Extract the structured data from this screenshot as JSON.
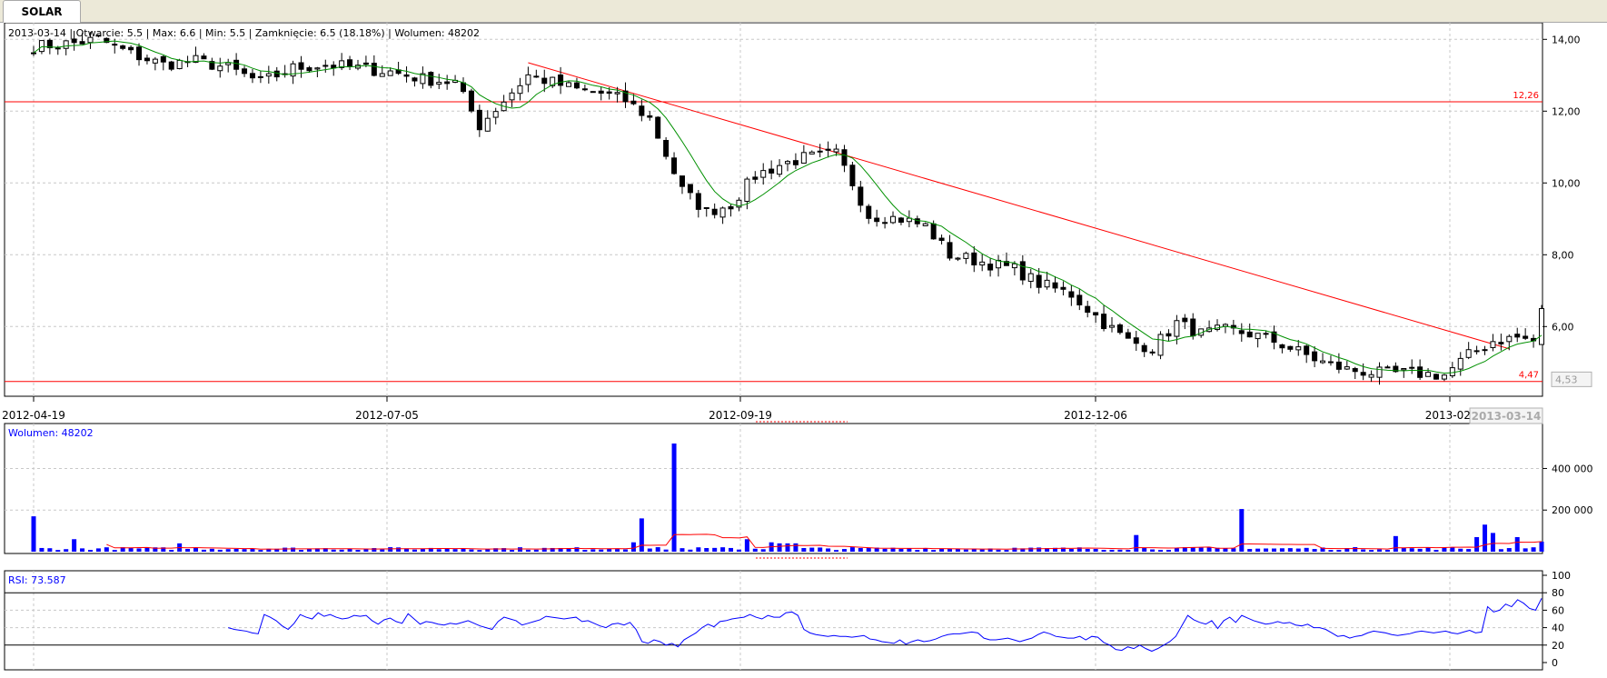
{
  "tab": {
    "label": "SOLAR"
  },
  "chart_data": [
    {
      "type": "candlestick",
      "header": "2013-03-14 | Otwarcie: 5.5 | Max: 6.6 | Min: 5.5 | Zamknięcie: 6.5 (18.18%) | Wolumen: 48202",
      "x_tick_labels": [
        "2012-04-19",
        "2012-07-05",
        "2012-09-19",
        "2012-12-06",
        "2013-02-"
      ],
      "current_date_label": "2013-03-14",
      "y_tick_labels": [
        "14,00",
        "12,00",
        "10,00",
        "8,00",
        "6,00"
      ],
      "ylim": [
        4.4,
        14.4
      ],
      "horizontal_lines": [
        {
          "value": 12.26,
          "label": "12,26",
          "color": "#ff0000"
        },
        {
          "value": 4.47,
          "label": "4,47",
          "color": "#ff0000"
        }
      ],
      "price_box_label": "4,53",
      "trendline": {
        "points": [
          {
            "index": 61,
            "value": 13.35
          },
          {
            "index": 182,
            "value": 5.38
          }
        ],
        "color": "#ff0000"
      },
      "moving_average_color": "#009000",
      "close_anchors": [
        [
          0,
          13.8
        ],
        [
          5,
          13.9
        ],
        [
          8,
          14.0
        ],
        [
          12,
          13.6
        ],
        [
          16,
          13.3
        ],
        [
          20,
          13.4
        ],
        [
          24,
          13.2
        ],
        [
          28,
          12.8
        ],
        [
          32,
          13.2
        ],
        [
          36,
          13.3
        ],
        [
          40,
          13.2
        ],
        [
          44,
          13.1
        ],
        [
          48,
          12.9
        ],
        [
          52,
          12.8
        ],
        [
          55,
          11.6
        ],
        [
          58,
          12.3
        ],
        [
          61,
          13.0
        ],
        [
          64,
          12.8
        ],
        [
          67,
          12.6
        ],
        [
          70,
          12.5
        ],
        [
          73,
          12.3
        ],
        [
          76,
          11.8
        ],
        [
          78,
          10.8
        ],
        [
          80,
          9.8
        ],
        [
          83,
          9.2
        ],
        [
          86,
          9.4
        ],
        [
          89,
          10.2
        ],
        [
          92,
          10.5
        ],
        [
          95,
          10.7
        ],
        [
          99,
          10.8
        ],
        [
          101,
          10.0
        ],
        [
          103,
          9.1
        ],
        [
          107,
          9.0
        ],
        [
          110,
          8.8
        ],
        [
          113,
          8.0
        ],
        [
          117,
          7.8
        ],
        [
          121,
          7.6
        ],
        [
          124,
          7.2
        ],
        [
          128,
          6.9
        ],
        [
          132,
          6.1
        ],
        [
          135,
          5.6
        ],
        [
          138,
          5.4
        ],
        [
          141,
          6.1
        ],
        [
          144,
          5.8
        ],
        [
          147,
          5.9
        ],
        [
          150,
          5.8
        ],
        [
          153,
          5.6
        ],
        [
          156,
          5.3
        ],
        [
          159,
          5.0
        ],
        [
          162,
          4.8
        ],
        [
          166,
          4.7
        ],
        [
          170,
          4.7
        ],
        [
          174,
          4.65
        ],
        [
          177,
          5.2
        ],
        [
          180,
          5.6
        ],
        [
          183,
          5.7
        ],
        [
          185,
          5.6
        ],
        [
          186,
          6.5
        ]
      ],
      "volume": {
        "label": "Wolumen: 48202",
        "y_tick_labels": [
          "400 000",
          "200 000"
        ],
        "ylim": [
          0,
          520000
        ],
        "bar_color": "#0000ff",
        "avg_color": "#ff0000",
        "spikes": [
          [
            0,
            170000
          ],
          [
            5,
            60000
          ],
          [
            18,
            40000
          ],
          [
            74,
            45000
          ],
          [
            75,
            160000
          ],
          [
            79,
            520000
          ],
          [
            88,
            60000
          ],
          [
            91,
            45000
          ],
          [
            92,
            40000
          ],
          [
            93,
            40000
          ],
          [
            94,
            40000
          ],
          [
            136,
            80000
          ],
          [
            149,
            205000
          ],
          [
            168,
            75000
          ],
          [
            178,
            70000
          ],
          [
            179,
            130000
          ],
          [
            180,
            90000
          ],
          [
            183,
            70000
          ],
          [
            186,
            48202
          ]
        ]
      }
    },
    {
      "type": "line",
      "label": "RSI: 73.587",
      "y_tick_labels": [
        "100",
        "80",
        "60",
        "40",
        "20",
        "0"
      ],
      "ylim": [
        0,
        100
      ],
      "reference_lines": [
        80,
        20
      ],
      "color": "#0000ff",
      "start_index": 24,
      "values": [
        40,
        38,
        37,
        36,
        34,
        33,
        55,
        52,
        48,
        42,
        38,
        45,
        55,
        52,
        50,
        57,
        53,
        55,
        52,
        50,
        51,
        54,
        53,
        54,
        48,
        44,
        49,
        51,
        47,
        45,
        56,
        50,
        44,
        47,
        46,
        44,
        43,
        45,
        44,
        46,
        48,
        45,
        42,
        40,
        38,
        47,
        52,
        50,
        48,
        43,
        45,
        47,
        49,
        53,
        52,
        51,
        50,
        51,
        52,
        47,
        48,
        45,
        42,
        40,
        44,
        45,
        43,
        46,
        38,
        24,
        22,
        26,
        24,
        20,
        22,
        18,
        26,
        30,
        34,
        40,
        44,
        41,
        47,
        48,
        50,
        51,
        52,
        55,
        52,
        50,
        54,
        52,
        52,
        57,
        58,
        54,
        38,
        34,
        32,
        31,
        30,
        31,
        30,
        30,
        29,
        30,
        31,
        27,
        26,
        24,
        23,
        22,
        26,
        21,
        24,
        26,
        24,
        25,
        27,
        30,
        32,
        33,
        33,
        34,
        35,
        34,
        28,
        26,
        26,
        27,
        28,
        26,
        24,
        26,
        28,
        32,
        35,
        33,
        30,
        29,
        28,
        28,
        30,
        26,
        30,
        29,
        23,
        20,
        15,
        14,
        18,
        16,
        20,
        16,
        13,
        16,
        20,
        24,
        30,
        42,
        54,
        49,
        46,
        44,
        48,
        39,
        48,
        52,
        46,
        54,
        51,
        48,
        46,
        44,
        45,
        47,
        45,
        46,
        43,
        42,
        44,
        40,
        40,
        38,
        34,
        30,
        31,
        28,
        30,
        31,
        34,
        36,
        35,
        34,
        32,
        31,
        32,
        33,
        35,
        36,
        35,
        34,
        35,
        36,
        34,
        33,
        35,
        37,
        34,
        35,
        64,
        58,
        60,
        67,
        64,
        72,
        68,
        62,
        60,
        73.587
      ]
    }
  ]
}
